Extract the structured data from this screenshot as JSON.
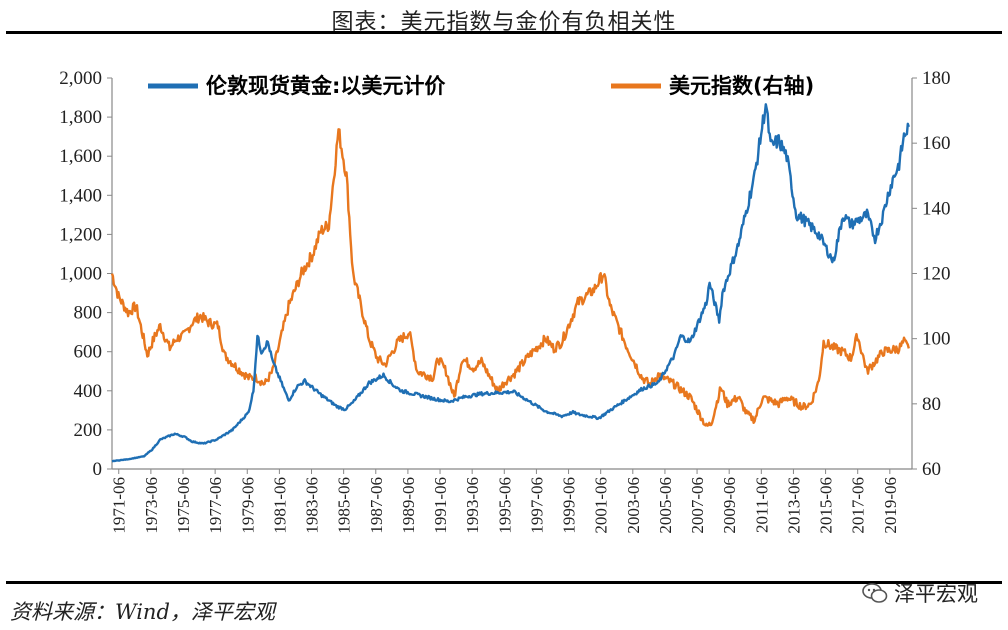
{
  "title": "图表：美元指数与金价有负相关性",
  "source": "资料来源：Wind，泽平宏观",
  "watermark": "泽平宏观",
  "watermark_icon": "wechat-chat-bubbles-icon",
  "colors": {
    "gold": "#1F6FB4",
    "dxy": "#E8771E",
    "axis": "#888888",
    "rule": "#000000"
  },
  "chart_data": {
    "type": "line",
    "title": "",
    "legend_position": "top",
    "x_range": [
      1971.0,
      2020.8
    ],
    "x_tick_labels": [
      "1971-06",
      "1973-06",
      "1975-06",
      "1977-06",
      "1979-06",
      "1981-06",
      "1983-06",
      "1985-06",
      "1987-06",
      "1989-06",
      "1991-06",
      "1993-06",
      "1995-06",
      "1997-06",
      "1999-06",
      "2001-06",
      "2003-06",
      "2005-06",
      "2007-06",
      "2009-06",
      "2011-06",
      "2013-06",
      "2015-06",
      "2017-06",
      "2019-06"
    ],
    "y_left": {
      "range": [
        0,
        2000
      ],
      "ticks": [
        0,
        200,
        400,
        600,
        800,
        1000,
        1200,
        1400,
        1600,
        1800,
        2000
      ],
      "tick_labels": [
        "0",
        "200",
        "400",
        "600",
        "800",
        "1,000",
        "1,200",
        "1,400",
        "1,600",
        "1,800",
        "2,000"
      ]
    },
    "y_right": {
      "range": [
        60,
        180
      ],
      "ticks": [
        60,
        80,
        100,
        120,
        140,
        160,
        180
      ],
      "tick_labels": [
        "60",
        "80",
        "100",
        "120",
        "140",
        "160",
        "180"
      ]
    },
    "series": [
      {
        "name": "伦敦现货黄金:以美元计价",
        "axis": "left",
        "x": [
          1971.0,
          1972.0,
          1973.0,
          1973.5,
          1974.0,
          1974.9,
          1975.5,
          1976.0,
          1976.7,
          1977.5,
          1978.5,
          1979.5,
          1979.8,
          1980.05,
          1980.3,
          1980.7,
          1981.0,
          1981.5,
          1982.0,
          1982.5,
          1983.0,
          1984.0,
          1985.0,
          1985.5,
          1986.0,
          1987.0,
          1987.9,
          1988.5,
          1989.0,
          1990.0,
          1991.0,
          1992.0,
          1993.0,
          1994.0,
          1995.0,
          1996.0,
          1996.5,
          1997.0,
          1998.0,
          1999.0,
          1999.7,
          2000.0,
          2001.0,
          2001.3,
          2002.0,
          2003.0,
          2004.0,
          2005.0,
          2006.0,
          2006.4,
          2007.0,
          2008.0,
          2008.2,
          2008.8,
          2009.0,
          2010.0,
          2011.0,
          2011.7,
          2012.0,
          2012.5,
          2013.0,
          2013.3,
          2013.6,
          2014.0,
          2015.0,
          2015.9,
          2016.5,
          2017.0,
          2018.0,
          2018.5,
          2019.0,
          2019.3,
          2019.6,
          2020.0,
          2020.3,
          2020.6
        ],
        "values": [
          40,
          50,
          65,
          100,
          150,
          180,
          165,
          140,
          130,
          150,
          200,
          290,
          400,
          680,
          600,
          650,
          550,
          450,
          350,
          420,
          450,
          380,
          320,
          305,
          340,
          440,
          480,
          430,
          400,
          380,
          360,
          345,
          370,
          385,
          390,
          395,
          370,
          345,
          295,
          270,
          290,
          280,
          265,
          260,
          300,
          355,
          410,
          440,
          580,
          680,
          650,
          850,
          950,
          760,
          900,
          1150,
          1500,
          1870,
          1650,
          1680,
          1600,
          1450,
          1300,
          1280,
          1200,
          1060,
          1300,
          1250,
          1300,
          1180,
          1300,
          1400,
          1480,
          1560,
          1700,
          1750
        ]
      },
      {
        "name": "美元指数(右轴)",
        "axis": "right",
        "x": [
          1971.0,
          1971.4,
          1972.0,
          1972.5,
          1973.2,
          1973.6,
          1974.0,
          1974.6,
          1975.0,
          1975.5,
          1976.0,
          1976.5,
          1977.0,
          1977.6,
          1978.0,
          1978.8,
          1979.5,
          1980.0,
          1980.5,
          1981.0,
          1981.5,
          1982.0,
          1982.8,
          1983.5,
          1984.0,
          1984.5,
          1985.1,
          1985.6,
          1986.0,
          1987.0,
          1987.5,
          1988.0,
          1988.8,
          1989.5,
          1990.0,
          1991.0,
          1991.3,
          1991.8,
          1992.3,
          1992.8,
          1993.5,
          1994.0,
          1995.0,
          1995.5,
          1996.0,
          1997.0,
          1998.0,
          1998.5,
          1999.0,
          2000.0,
          2001.0,
          2001.6,
          2002.0,
          2003.0,
          2004.0,
          2004.5,
          2005.0,
          2006.0,
          2007.0,
          2008.0,
          2008.3,
          2008.9,
          2009.3,
          2010.0,
          2010.5,
          2011.0,
          2011.5,
          2012.5,
          2013.0,
          2014.0,
          2014.5,
          2015.0,
          2015.3,
          2016.0,
          2016.5,
          2017.0,
          2017.4,
          2018.0,
          2018.5,
          2019.0,
          2020.0,
          2020.3,
          2020.6
        ],
        "values": [
          120,
          113,
          108,
          110,
          95,
          100,
          104,
          97,
          100,
          101,
          105,
          107,
          105,
          104,
          95,
          91,
          88,
          88,
          86,
          90,
          100,
          110,
          120,
          126,
          133,
          135,
          164,
          150,
          120,
          100,
          94,
          92,
          99,
          102,
          90,
          88,
          94,
          90,
          82,
          94,
          91,
          93,
          84,
          87,
          89,
          95,
          100,
          97,
          99,
          111,
          115,
          120,
          110,
          98,
          88,
          86,
          89,
          86,
          82,
          73,
          74,
          85,
          80,
          82,
          77,
          75,
          82,
          80,
          82,
          79,
          80,
          87,
          99,
          97,
          96,
          94,
          101,
          90,
          93,
          96,
          97,
          99,
          97
        ]
      }
    ]
  }
}
